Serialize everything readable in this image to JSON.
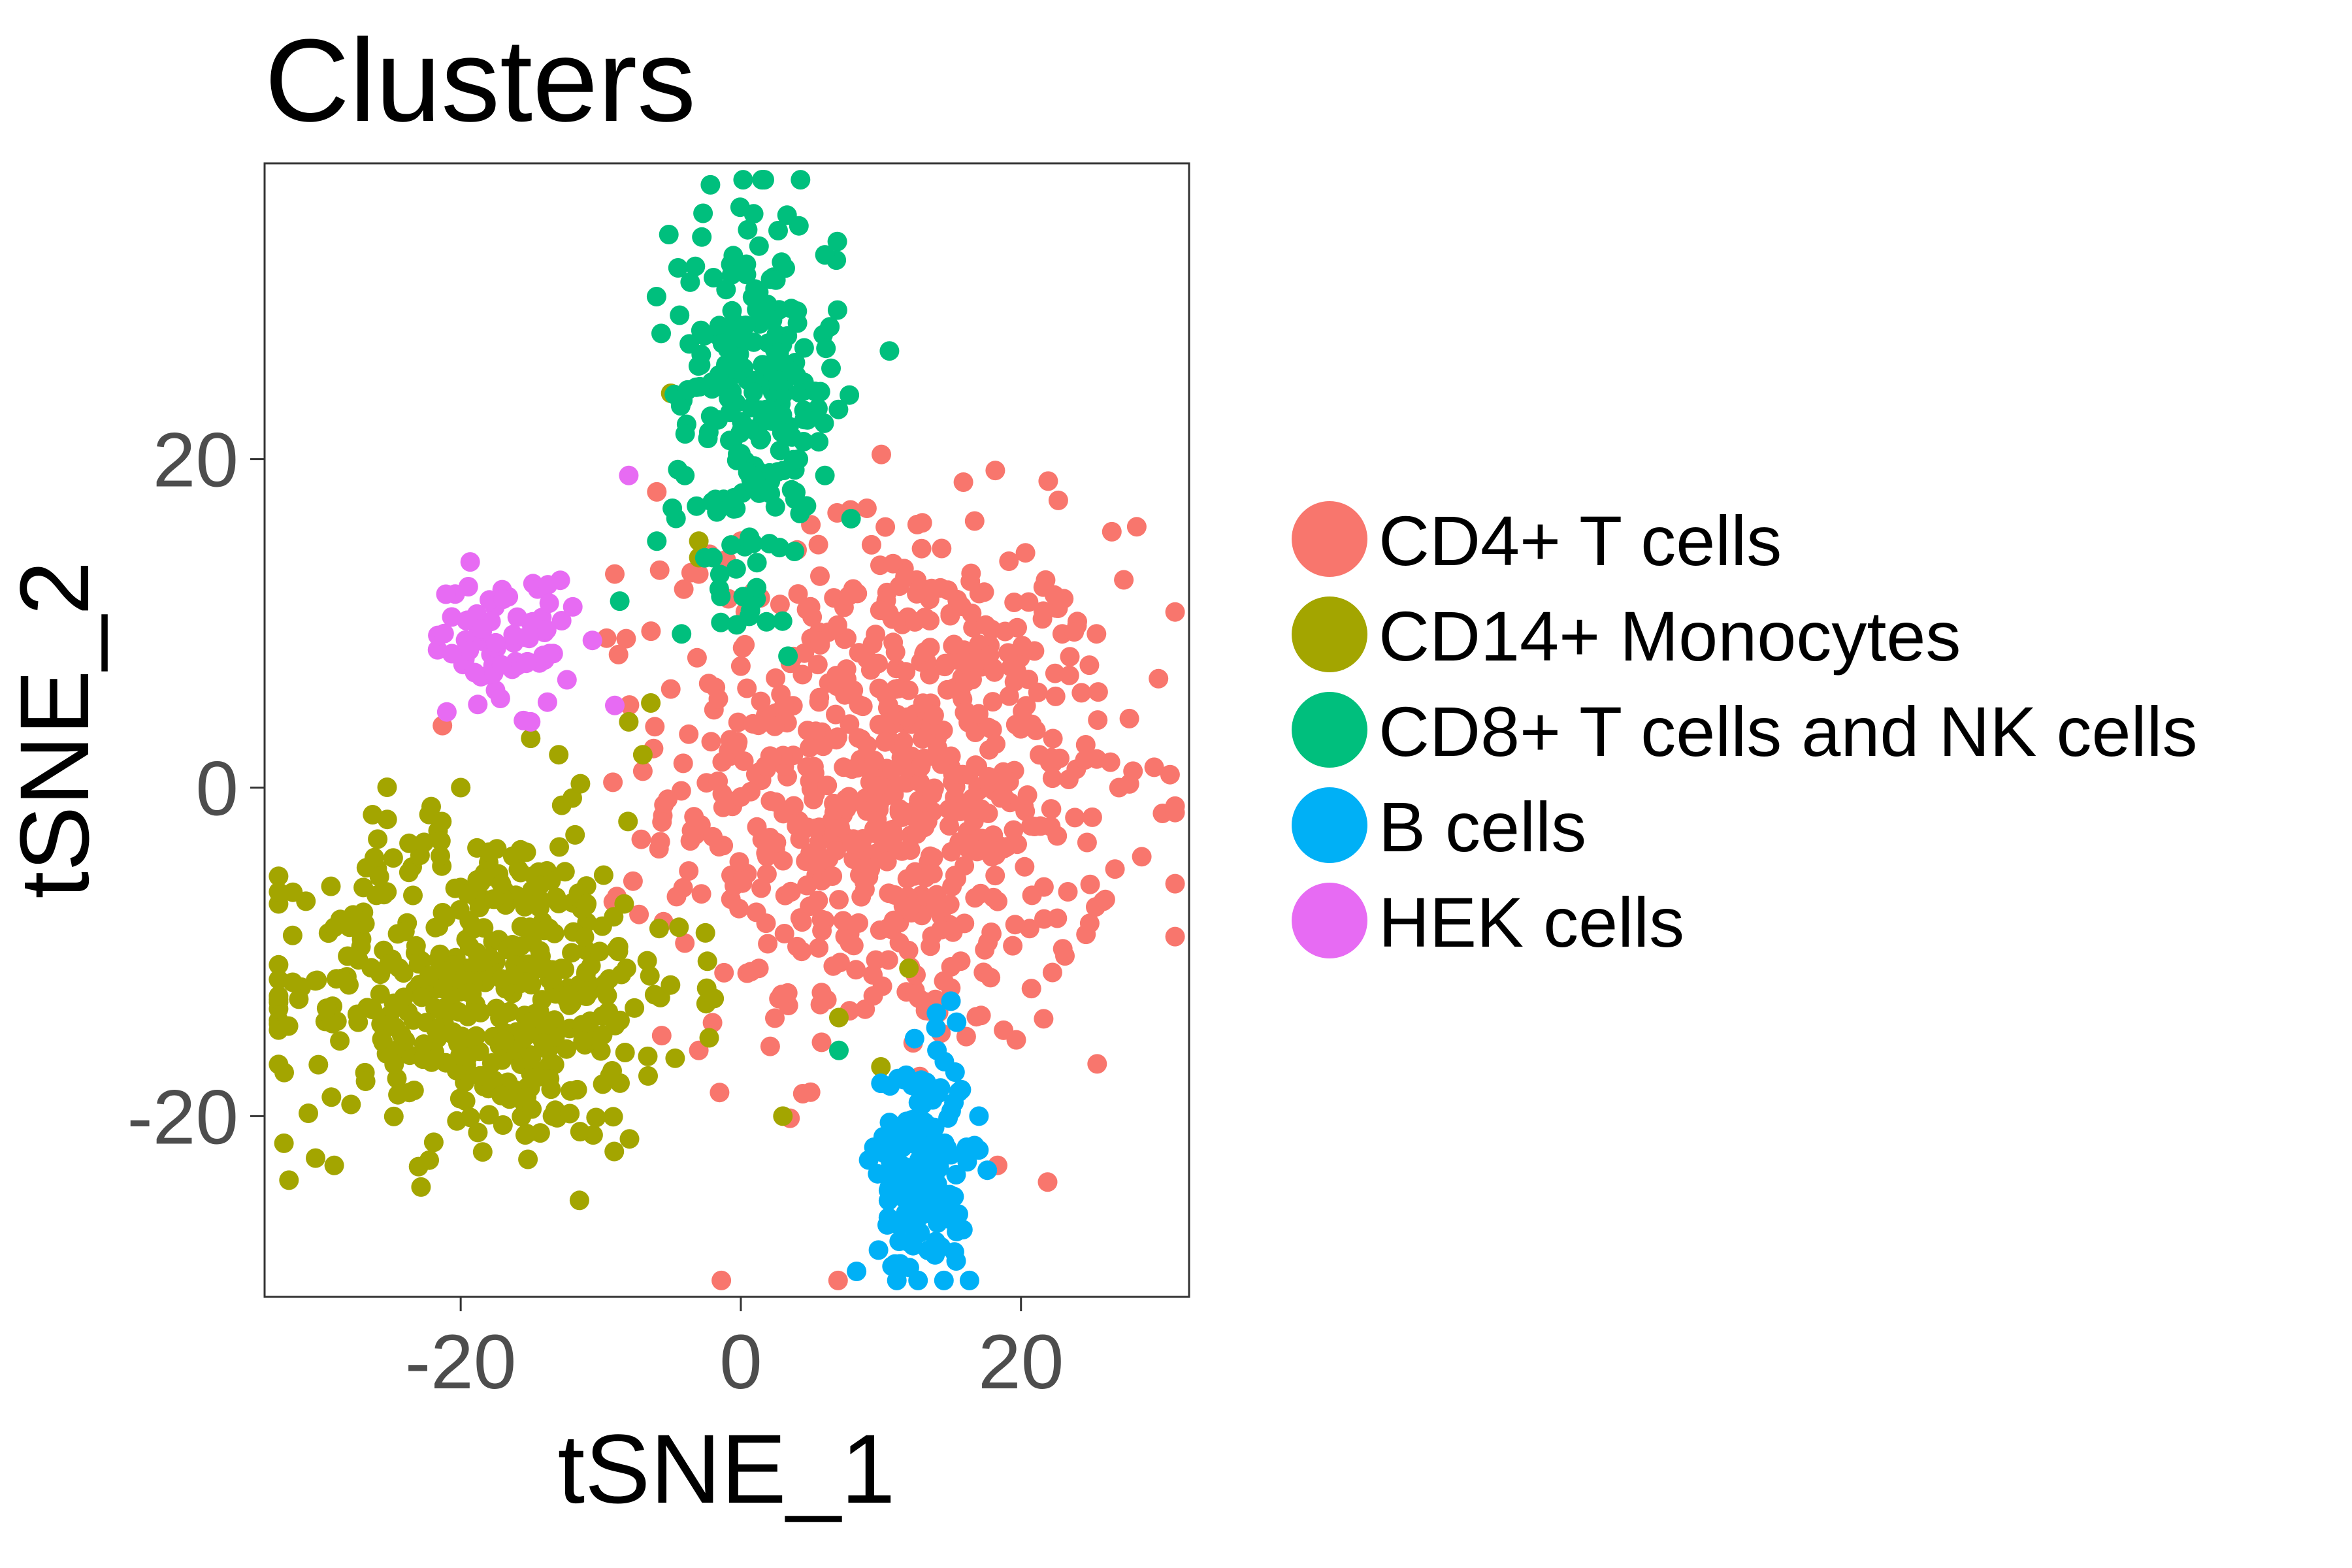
{
  "chart_data": {
    "type": "scatter",
    "title": "Clusters",
    "xlabel": "tSNE_1",
    "ylabel": "tSNE_2",
    "xlim": [
      -34,
      32
    ],
    "ylim": [
      -31,
      38
    ],
    "x_ticks": [
      -20,
      0,
      20
    ],
    "x_tick_labels": [
      "-20",
      "0",
      "20"
    ],
    "y_ticks": [
      -20,
      0,
      20
    ],
    "y_tick_labels": [
      "-20",
      "0",
      "20"
    ],
    "grid": false,
    "legend_position": "right",
    "series": [
      {
        "name": "CD4+ T cells",
        "color": "#F8766D",
        "cloud": {
          "cx": 11,
          "cy": 0,
          "sx": 8,
          "sy": 8,
          "count": 720
        },
        "points": [
          [
            -9,
            13
          ],
          [
            -6,
            18
          ],
          [
            -3,
            13
          ],
          [
            0,
            15
          ],
          [
            5,
            16
          ],
          [
            -7,
            1
          ],
          [
            -5,
            6
          ],
          [
            28,
            1
          ],
          [
            27,
            0
          ],
          [
            13,
            -13
          ],
          [
            9,
            17
          ],
          [
            -2,
            -3
          ],
          [
            15,
            -13
          ],
          [
            -3,
            -16
          ]
        ]
      },
      {
        "name": "CD14+ Monocytes",
        "color": "#A3A500",
        "cloud": {
          "cx": -18,
          "cy": -12,
          "sx": 7,
          "sy": 5,
          "count": 470
        },
        "points": [
          [
            -32,
            -9
          ],
          [
            -20,
            0
          ],
          [
            -15,
            3
          ],
          [
            -13,
            2
          ],
          [
            -5,
            24
          ],
          [
            -3,
            14
          ],
          [
            -3,
            15
          ],
          [
            3,
            -20
          ],
          [
            -8,
            4
          ],
          [
            -7,
            2
          ],
          [
            7,
            -14
          ],
          [
            10,
            -17
          ],
          [
            12,
            -11
          ]
        ]
      },
      {
        "name": "CD8+ T cells and NK cells",
        "color": "#00BF7D",
        "cloud": {
          "cx": 1,
          "cy": 24,
          "sx": 3,
          "sy": 6,
          "count": 240
        },
        "points": [
          [
            -6,
            15
          ],
          [
            7,
            -16
          ],
          [
            -4,
            19
          ],
          [
            6,
            19
          ],
          [
            -2,
            14
          ]
        ]
      },
      {
        "name": "B cells",
        "color": "#00B0F6",
        "cloud": {
          "cx": 13,
          "cy": -23,
          "sx": 1.6,
          "sy": 3.5,
          "count": 170
        },
        "points": [
          [
            15,
            -13
          ],
          [
            17,
            -20
          ],
          [
            10,
            -18
          ],
          [
            11,
            -29
          ],
          [
            14,
            -28
          ],
          [
            14,
            -16
          ]
        ]
      },
      {
        "name": "HEK cells",
        "color": "#E76BF3",
        "cloud": {
          "cx": -17,
          "cy": 9,
          "sx": 2.5,
          "sy": 2,
          "count": 70
        },
        "points": [
          [
            -8,
            19
          ],
          [
            -12,
            11
          ],
          [
            -15,
            4
          ],
          [
            -19,
            7
          ],
          [
            -9,
            5
          ]
        ]
      }
    ]
  }
}
